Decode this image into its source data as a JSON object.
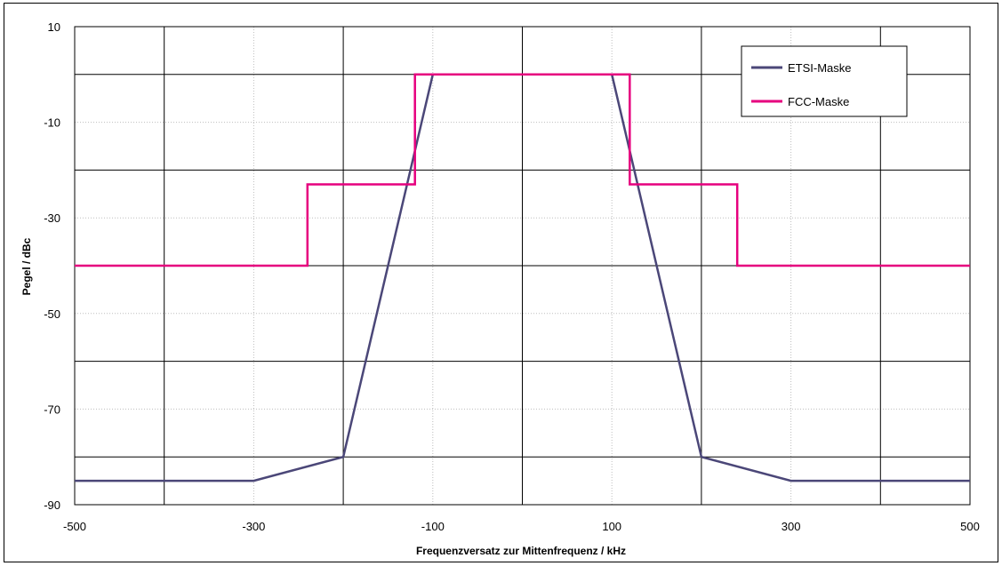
{
  "chart_data": {
    "type": "line",
    "title": "",
    "xlabel": "Frequenzversatz zur Mittenfrequenz / kHz",
    "ylabel": "Pegel / dBc",
    "xlim": [
      -500,
      500
    ],
    "ylim": [
      -90,
      10
    ],
    "x_tick_labels": [
      "-500",
      "-300",
      "-100",
      "100",
      "300",
      "500"
    ],
    "y_tick_labels": [
      "10",
      "-10",
      "-30",
      "-50",
      "-70",
      "-90"
    ],
    "x_major_grid": [
      -400,
      -200,
      0,
      200,
      400
    ],
    "x_minor_grid": [
      -500,
      -300,
      -100,
      100,
      300,
      500
    ],
    "y_major_grid": [
      0,
      -20,
      -40,
      -60,
      -80
    ],
    "y_minor_grid": [
      10,
      -10,
      -30,
      -50,
      -70
    ],
    "grid": true,
    "legend_position": "top-right",
    "series": [
      {
        "name": "ETSI-Maske",
        "color": "#4b4778",
        "x": [
          -500,
          -300,
          -200,
          -100,
          100,
          200,
          300,
          500
        ],
        "y": [
          -85,
          -85,
          -80,
          0,
          0,
          -80,
          -85,
          -85
        ]
      },
      {
        "name": "FCC-Maske",
        "color": "#e6007e",
        "x": [
          -500,
          -240,
          -240,
          -120,
          -120,
          120,
          120,
          240,
          240,
          500
        ],
        "y": [
          -40,
          -40,
          -23,
          -23,
          0,
          0,
          -23,
          -23,
          -40,
          -40
        ]
      }
    ]
  }
}
